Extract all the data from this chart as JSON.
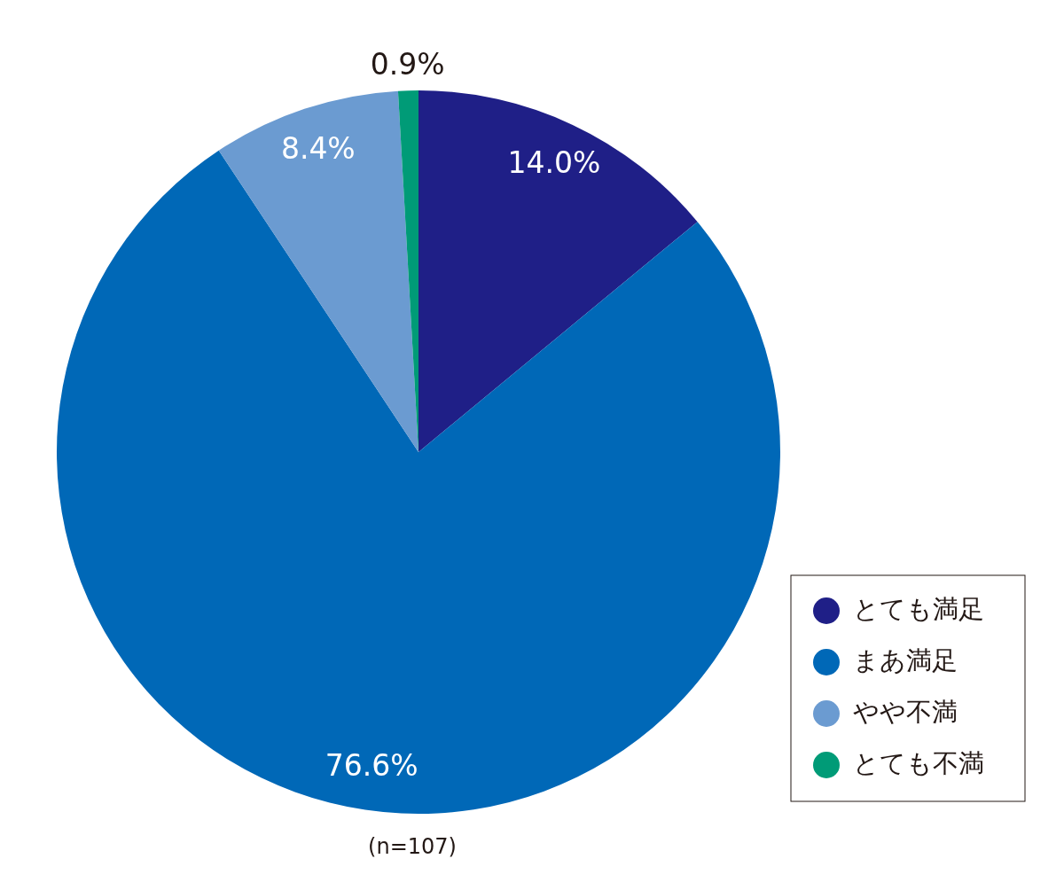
{
  "chart_data": {
    "type": "pie",
    "categories": [
      "とても満足",
      "まあ満足",
      "やや不満",
      "とても不満"
    ],
    "values": [
      14.0,
      76.6,
      8.4,
      0.9
    ],
    "colors": [
      "#1f1f87",
      "#0068b7",
      "#6b9bd1",
      "#009b77"
    ],
    "value_labels": [
      "14.0%",
      "76.6%",
      "8.4%",
      "0.9%"
    ],
    "legend": "bottom right",
    "annotations": [
      "(n=107)"
    ]
  }
}
